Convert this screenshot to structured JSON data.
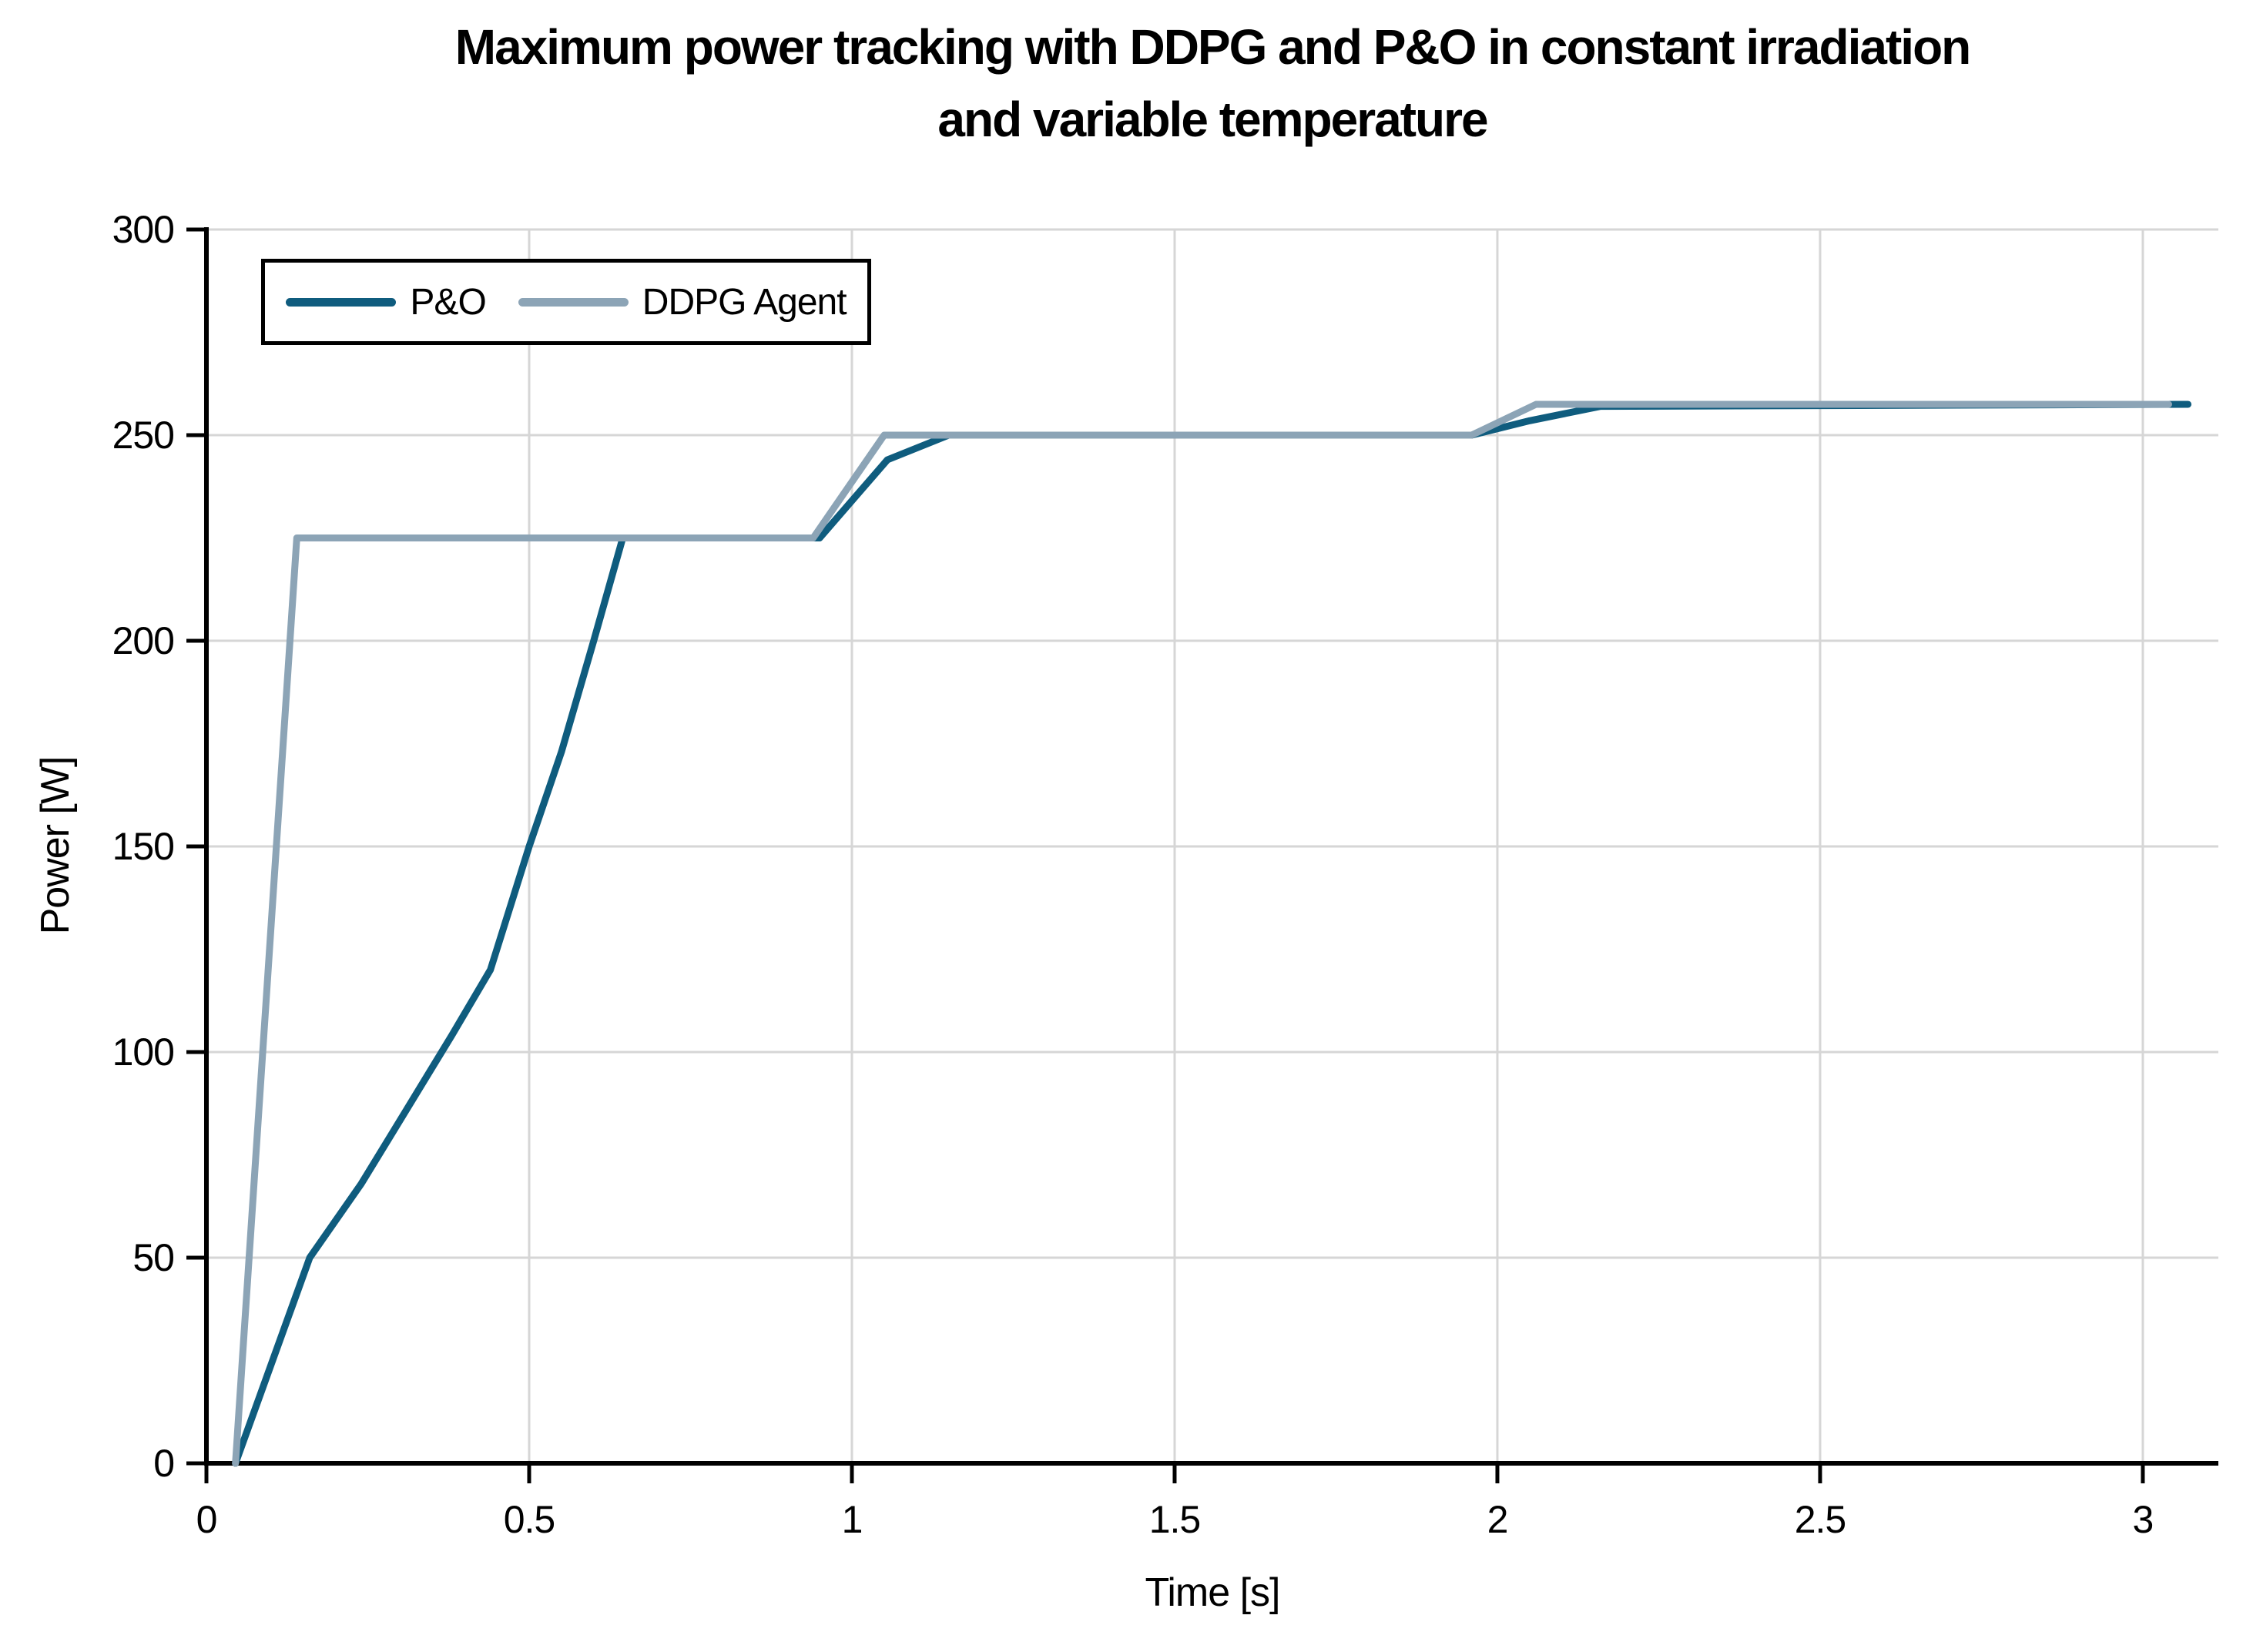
{
  "chart_data": {
    "type": "line",
    "title_lines": [
      "Maximum power tracking with DDPG and P&O in constant irradiation",
      "and variable temperature"
    ],
    "xlabel": "Time [s]",
    "ylabel": "Power [W]",
    "xlim": [
      0,
      3.117
    ],
    "ylim": [
      0,
      300
    ],
    "x_ticks": [
      0,
      0.5,
      1,
      1.5,
      2,
      2.5,
      3
    ],
    "x_tick_labels": [
      "0",
      "0.5",
      "1",
      "1.5",
      "2",
      "2.5",
      "3"
    ],
    "y_ticks": [
      0,
      50,
      100,
      150,
      200,
      250,
      300
    ],
    "y_tick_labels": [
      "0",
      "50",
      "100",
      "150",
      "200",
      "250",
      "300"
    ],
    "grid": true,
    "legend_position": "top-left-inside",
    "series": [
      {
        "name": "P&O",
        "color": "#0f5c7e",
        "points": [
          [
            0.045,
            0
          ],
          [
            0.16,
            50
          ],
          [
            0.24,
            68
          ],
          [
            0.31,
            86
          ],
          [
            0.38,
            104
          ],
          [
            0.44,
            120
          ],
          [
            0.5,
            150
          ],
          [
            0.55,
            173
          ],
          [
            0.6,
            200
          ],
          [
            0.645,
            225
          ],
          [
            0.95,
            225
          ],
          [
            1.055,
            244
          ],
          [
            1.15,
            250
          ],
          [
            1.96,
            250
          ],
          [
            2.05,
            253.5
          ],
          [
            2.16,
            257
          ],
          [
            3.07,
            257.5
          ]
        ]
      },
      {
        "name": "DDPG Agent",
        "color": "#8ca4b6",
        "points": [
          [
            0.045,
            0
          ],
          [
            0.14,
            225
          ],
          [
            0.94,
            225
          ],
          [
            1.05,
            250
          ],
          [
            1.96,
            250
          ],
          [
            2.06,
            257.5
          ],
          [
            3.04,
            257.5
          ]
        ]
      }
    ],
    "colors": {
      "gridline": "#d6d6d6",
      "axis": "#000000",
      "text": "#000000",
      "legend_border": "#000000",
      "legend_bg": "#ffffff",
      "background": "#ffffff"
    }
  }
}
